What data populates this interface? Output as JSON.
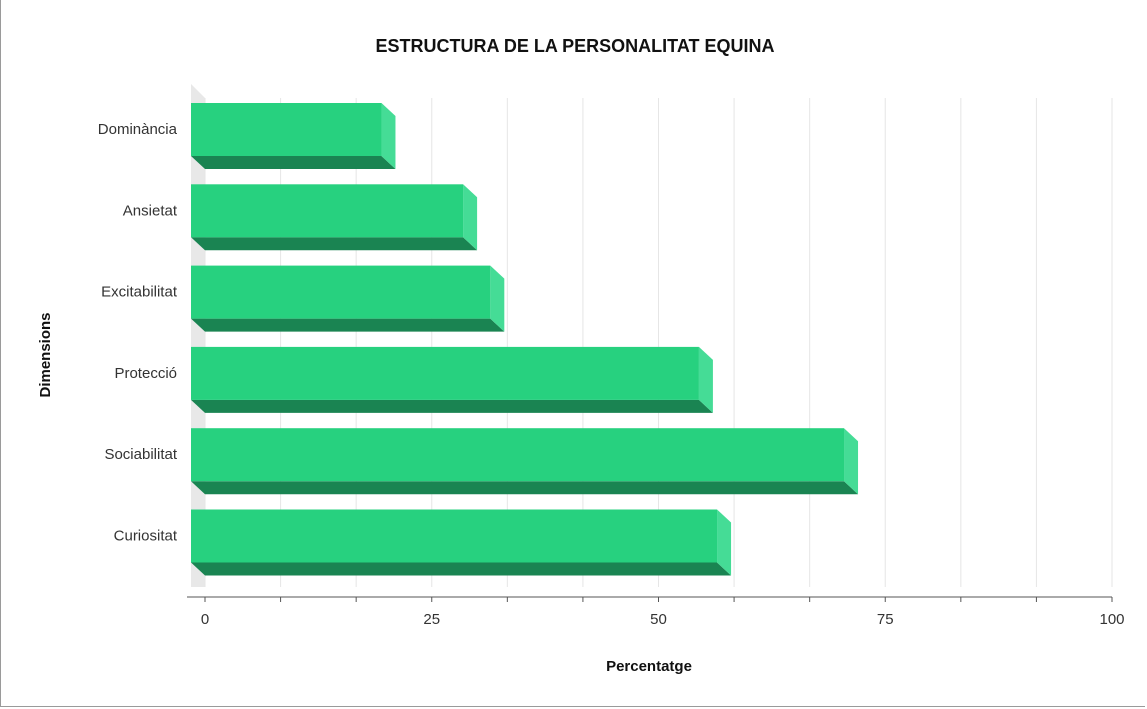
{
  "chart_data": {
    "type": "bar",
    "orientation": "horizontal",
    "title": "ESTRUCTURA DE LA PERSONALITAT EQUINA",
    "xlabel": "Percentatge",
    "ylabel": "Dimensions",
    "categories": [
      "Dominància",
      "Ansietat",
      "Excitabilitat",
      "Protecció",
      "Sociabilitat",
      "Curiositat"
    ],
    "values": [
      21,
      30,
      33,
      56,
      72,
      58
    ],
    "xlim": [
      0,
      100
    ],
    "xticks": [
      0,
      25,
      50,
      75,
      100
    ],
    "grid": true,
    "legend": "none",
    "style": "3d",
    "colors": {
      "bar_front": "#27d17f",
      "bar_side": "#45dc96",
      "bar_bottom": "#1a8452",
      "grid": "#e6e6e6",
      "axis": "#555555",
      "wall": "#e8e8e8"
    }
  }
}
